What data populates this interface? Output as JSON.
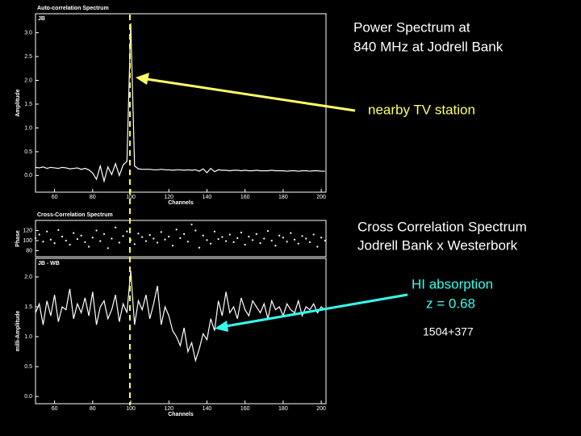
{
  "chart_data": [
    {
      "type": "line",
      "title": "Auto-correlation Spectrum",
      "panel_label": "JB",
      "x_label": "Channels",
      "y_label": "Amplitude",
      "color": "#ffffff",
      "xlim": [
        50,
        202.5
      ],
      "ylim": [
        -0.35,
        3.4
      ],
      "xticks": [
        60,
        80,
        100,
        120,
        140,
        160,
        180,
        200
      ],
      "yticks": [
        {
          "value": 0,
          "label": "0.0"
        },
        0.5,
        {
          "value": 1,
          "label": "1.0"
        },
        1.5,
        {
          "value": 2,
          "label": "2.0"
        },
        2.5,
        {
          "value": 3,
          "label": "3.0"
        }
      ],
      "x": [
        50,
        52,
        54,
        56,
        58,
        60,
        62,
        64,
        66,
        68,
        70,
        72,
        74,
        76,
        78,
        80,
        82,
        84,
        86,
        88,
        90,
        92,
        94,
        96,
        98,
        100,
        102,
        104,
        106,
        108,
        110,
        112,
        114,
        116,
        118,
        120,
        122,
        124,
        126,
        128,
        130,
        132,
        134,
        136,
        138,
        140,
        142,
        144,
        146,
        148,
        150,
        152,
        154,
        156,
        158,
        160,
        162,
        164,
        166,
        168,
        170,
        172,
        174,
        176,
        178,
        180,
        182,
        184,
        186,
        188,
        190,
        192,
        194,
        196,
        198,
        200,
        202
      ],
      "values": [
        0.17,
        0.16,
        0.18,
        0.15,
        0.17,
        0.16,
        0.15,
        0.17,
        0.16,
        0.14,
        0.15,
        0.16,
        0.13,
        0.15,
        0.12,
        0.05,
        -0.08,
        0.2,
        -0.12,
        0.18,
        0.02,
        0.25,
        0.0,
        0.22,
        0.3,
        3.2,
        0.2,
        0.14,
        0.13,
        0.13,
        0.13,
        0.12,
        0.12,
        0.13,
        0.12,
        0.12,
        0.11,
        0.12,
        0.12,
        0.11,
        0.12,
        0.11,
        0.12,
        0.09,
        0.14,
        0.06,
        0.15,
        0.08,
        0.12,
        0.11,
        0.11,
        0.1,
        0.11,
        0.11,
        0.1,
        0.11,
        0.1,
        0.1,
        0.11,
        0.1,
        0.1,
        0.1,
        0.11,
        0.1,
        0.1,
        0.1,
        0.09,
        0.1,
        0.1,
        0.09,
        0.1,
        0.1,
        0.09,
        0.1,
        0.1,
        0.09,
        0.09
      ]
    },
    {
      "type": "scatter",
      "title": "Cross-Correlation Spectrum",
      "y_label": "Phase",
      "color": "#ffffff",
      "xlim": [
        50,
        202.5
      ],
      "ylim": [
        68,
        140
      ],
      "yticks": [
        80,
        100,
        120
      ],
      "x": [
        50,
        52,
        54,
        56,
        58,
        60,
        62,
        64,
        66,
        68,
        70,
        72,
        74,
        76,
        78,
        80,
        82,
        84,
        86,
        88,
        90,
        92,
        94,
        96,
        98,
        100,
        102,
        104,
        106,
        108,
        110,
        112,
        114,
        116,
        118,
        120,
        122,
        124,
        126,
        128,
        130,
        132,
        134,
        136,
        138,
        140,
        142,
        144,
        146,
        148,
        150,
        152,
        154,
        156,
        158,
        160,
        162,
        164,
        166,
        168,
        170,
        172,
        174,
        176,
        178,
        180,
        182,
        184,
        186,
        188,
        190,
        192,
        194,
        196,
        198,
        200,
        202
      ],
      "values": [
        105,
        112,
        98,
        118,
        102,
        95,
        121,
        108,
        100,
        92,
        115,
        103,
        110,
        97,
        88,
        106,
        120,
        99,
        113,
        85,
        104,
        126,
        96,
        109,
        118,
        101,
        93,
        114,
        107,
        99,
        111,
        104,
        96,
        117,
        102,
        108,
        90,
        122,
        105,
        113,
        98,
        132,
        120,
        86,
        110,
        101,
        94,
        118,
        103,
        107,
        99,
        112,
        97,
        105,
        116,
        92,
        108,
        101,
        113,
        95,
        104,
        119,
        100,
        90,
        110,
        106,
        98,
        115,
        102,
        94,
        109,
        104,
        97,
        112,
        88,
        106,
        100
      ]
    },
    {
      "type": "line",
      "panel_label": "JB - WB",
      "x_label": "Channels",
      "y_label": "milli-Amplitude",
      "color": "#ffffff",
      "xlim": [
        50,
        202.5
      ],
      "ylim": [
        -0.12,
        2.31
      ],
      "xticks": [
        60,
        80,
        100,
        120,
        140,
        160,
        180,
        200
      ],
      "yticks": [
        {
          "value": 0,
          "label": "0.0"
        },
        0.5,
        {
          "value": 1,
          "label": "1.0"
        },
        1.5,
        {
          "value": 2,
          "label": "2.0"
        }
      ],
      "x": [
        50,
        52,
        54,
        56,
        58,
        60,
        62,
        64,
        66,
        68,
        70,
        72,
        74,
        76,
        78,
        80,
        82,
        84,
        86,
        88,
        90,
        92,
        94,
        96,
        98,
        100,
        102,
        104,
        106,
        108,
        110,
        112,
        114,
        116,
        118,
        120,
        122,
        124,
        126,
        128,
        130,
        132,
        134,
        136,
        138,
        140,
        142,
        144,
        146,
        148,
        150,
        152,
        154,
        156,
        158,
        160,
        162,
        164,
        166,
        168,
        170,
        172,
        174,
        176,
        178,
        180,
        182,
        184,
        186,
        188,
        190,
        192,
        194,
        196,
        198,
        200,
        202
      ],
      "values": [
        1.4,
        1.55,
        1.2,
        1.6,
        1.35,
        1.7,
        1.25,
        1.5,
        1.45,
        1.8,
        1.3,
        1.55,
        1.4,
        1.65,
        1.35,
        1.75,
        1.2,
        1.5,
        1.6,
        1.3,
        1.45,
        1.7,
        1.25,
        1.55,
        1.4,
        2.1,
        1.2,
        1.6,
        1.45,
        1.7,
        1.3,
        1.55,
        1.85,
        1.2,
        1.5,
        1.35,
        1.1,
        1.0,
        0.85,
        1.15,
        0.75,
        0.9,
        0.6,
        0.8,
        1.05,
        0.95,
        1.3,
        1.1,
        1.6,
        1.35,
        1.75,
        1.4,
        1.5,
        1.3,
        1.65,
        1.45,
        1.35,
        1.6,
        1.5,
        1.4,
        1.55,
        1.3,
        1.6,
        1.45,
        1.5,
        1.35,
        1.55,
        1.45,
        1.4,
        1.6,
        1.35,
        1.5,
        1.45,
        1.55,
        1.4,
        1.5,
        1.45
      ]
    }
  ],
  "annotations": {
    "power_line1": "Power Spectrum  at",
    "power_line2": "840 MHz  at Jodrell Bank",
    "tv": "nearby TV station",
    "cross_line1": "Cross Correlation Spectrum",
    "cross_line2": "Jodrell Bank   x   Westerbork",
    "hi_line1": "HI  absorption",
    "hi_line2": "z  = 0.68",
    "source": "1504+377"
  }
}
